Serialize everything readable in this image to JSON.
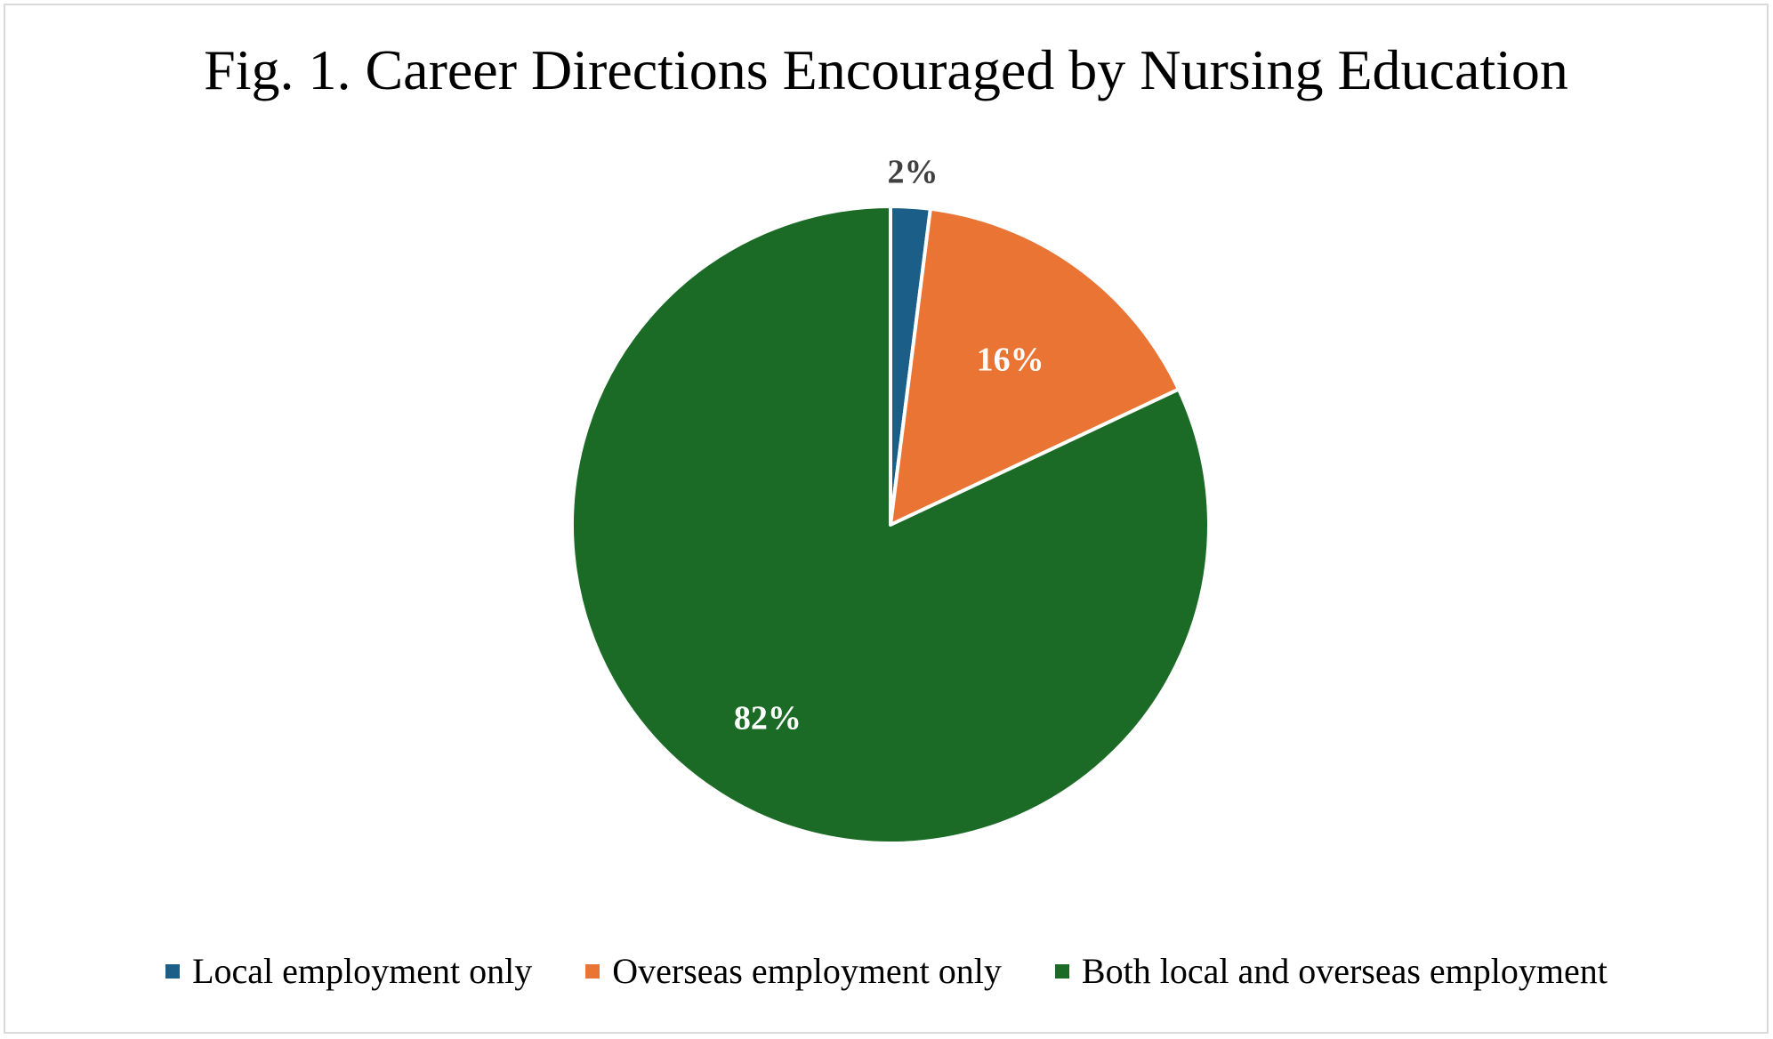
{
  "chart_data": {
    "type": "pie",
    "title": "Fig. 1. Career Directions Encouraged by Nursing Education",
    "slices": [
      {
        "label": "Local employment only",
        "value": 2,
        "display": "2%",
        "color": "#1b5e87",
        "label_color": "#404040"
      },
      {
        "label": "Overseas employment only",
        "value": 16,
        "display": "16%",
        "color": "#e97433",
        "label_color": "#ffffff"
      },
      {
        "label": "Both local and overseas employment",
        "value": 82,
        "display": "82%",
        "color": "#1b6b27",
        "label_color": "#ffffff"
      }
    ],
    "legend_position": "bottom"
  }
}
